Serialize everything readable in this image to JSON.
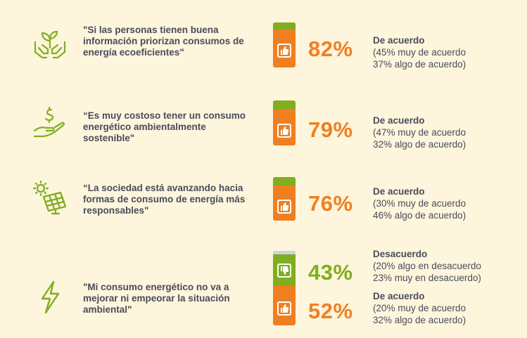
{
  "colors": {
    "orange": "#f07f22",
    "green": "#7fae1e",
    "text": "#4a4b5b",
    "background": "#fdf5dc"
  },
  "statements": [
    {
      "icon": "hands-plant-icon",
      "quote": "\"Si las personas tienen buena información priorizan consumos de energía ecoeficientes\"",
      "value_pct": 82,
      "percent": "82%",
      "label": "De acuerdo",
      "detail1": "(45% muy de acuerdo",
      "detail2": "37% algo de acuerdo)"
    },
    {
      "icon": "hand-money-icon",
      "quote": "“Es muy costoso tener un consumo energético ambientalmente sostenible\"",
      "value_pct": 79,
      "percent": "79%",
      "label": "De acuerdo",
      "detail1": "(47% muy de acuerdo",
      "detail2": "32% algo de acuerdo)"
    },
    {
      "icon": "solar-panel-icon",
      "quote": "“La sociedad está avanzando hacia formas de consumo de energía más responsables\"",
      "value_pct": 76,
      "percent": "76%",
      "label": "De acuerdo",
      "detail1": "(30% muy de acuerdo",
      "detail2": "46% algo de acuerdo)"
    },
    {
      "icon": "lightning-icon",
      "quote": "\"Mi consumo energético no va a mejorar ni empeorar la situación ambiental\"",
      "disagree": {
        "value_pct": 43,
        "percent": "43%",
        "label": "Desacuerdo",
        "detail1": "(20% algo en desacuerdo",
        "detail2": "23% muy en desacuerdo)"
      },
      "agree": {
        "value_pct": 52,
        "percent": "52%",
        "label": "De acuerdo",
        "detail1": "(20% muy de acuerdo",
        "detail2": "32% algo de acuerdo)"
      }
    }
  ]
}
